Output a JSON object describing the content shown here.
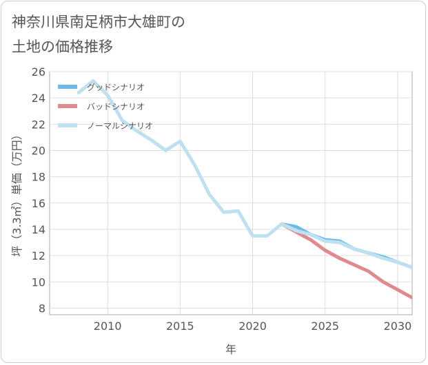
{
  "title_lines": [
    "神奈川県南足柄市大雄町の",
    "土地の価格推移"
  ],
  "chart_data": {
    "type": "line",
    "title": "神奈川県南足柄市大雄町の土地の価格推移",
    "xlabel": "年",
    "ylabel": "坪（3.3㎡）単価（万円）",
    "xlim": [
      2006,
      2031
    ],
    "ylim": [
      7.5,
      26
    ],
    "x_ticks": [
      2010,
      2015,
      2020,
      2025,
      2030
    ],
    "y_ticks": [
      8,
      10,
      12,
      14,
      16,
      18,
      20,
      22,
      24,
      26
    ],
    "grid": true,
    "legend_position": "top-left",
    "series": [
      {
        "name": "グッドシナリオ",
        "color": "#6cb9ea",
        "x": [
          2022,
          2023,
          2024,
          2025,
          2026,
          2027,
          2028,
          2029,
          2030,
          2031
        ],
        "values": [
          14.4,
          14.2,
          13.6,
          13.2,
          13.1,
          12.5,
          12.2,
          11.9,
          11.5,
          11.1
        ]
      },
      {
        "name": "バッドシナリオ",
        "color": "#de8a8f",
        "x": [
          2022,
          2023,
          2024,
          2025,
          2026,
          2027,
          2028,
          2029,
          2030,
          2031
        ],
        "values": [
          14.4,
          13.8,
          13.2,
          12.4,
          11.8,
          11.3,
          10.8,
          10.0,
          9.4,
          8.8
        ]
      },
      {
        "name": "ノーマルシナリオ",
        "color": "#bfe0ee",
        "x": [
          2008,
          2009,
          2010,
          2011,
          2012,
          2013,
          2014,
          2015,
          2016,
          2017,
          2018,
          2019,
          2020,
          2021,
          2022,
          2023,
          2024,
          2025,
          2026,
          2027,
          2028,
          2029,
          2030,
          2031
        ],
        "values": [
          24.4,
          25.3,
          24.2,
          22.3,
          21.5,
          20.8,
          20.0,
          20.7,
          18.9,
          16.7,
          15.3,
          15.4,
          13.5,
          13.5,
          14.4,
          13.9,
          13.6,
          13.1,
          13.0,
          12.5,
          12.2,
          11.8,
          11.5,
          11.1
        ]
      }
    ]
  }
}
